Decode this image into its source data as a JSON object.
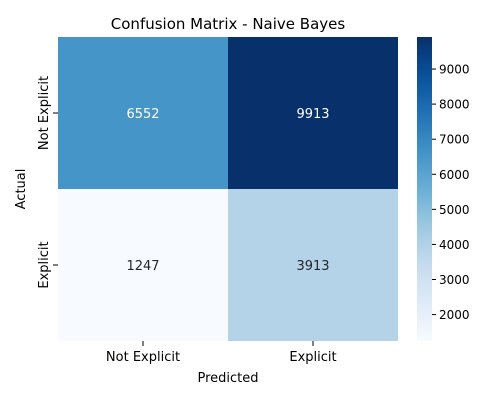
{
  "chart_data": {
    "type": "heatmap",
    "title": "Confusion Matrix - Naive Bayes",
    "xlabel": "Predicted",
    "ylabel": "Actual",
    "x_categories": [
      "Not Explicit",
      "Explicit"
    ],
    "y_categories": [
      "Not Explicit",
      "Explicit"
    ],
    "values": [
      [
        6552,
        9913
      ],
      [
        1247,
        3913
      ]
    ],
    "colormap": "Blues",
    "colorbar": {
      "min": 1247,
      "max": 9913,
      "ticks": [
        2000,
        3000,
        4000,
        5000,
        6000,
        7000,
        8000,
        9000
      ]
    }
  }
}
